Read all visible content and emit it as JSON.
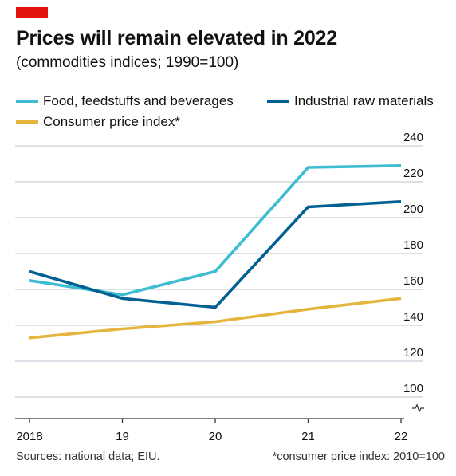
{
  "header": {
    "title": "Prices will remain elevated in 2022",
    "subtitle": "(commodities indices; 1990=100)"
  },
  "footer": {
    "source": "Sources: national data; EIU.",
    "note": "*consumer price index: 2010=100"
  },
  "colors": {
    "brand_tag": "#e3120b",
    "grid": "#b7c3cc",
    "axis": "#333333"
  },
  "chart_data": {
    "type": "line",
    "title": "Prices will remain elevated in 2022",
    "subtitle": "(commodities indices; 1990=100)",
    "x": [
      2018,
      2019,
      2020,
      2021,
      2022
    ],
    "x_tick_labels": [
      "2018",
      "19",
      "20",
      "21",
      "22"
    ],
    "ylim": [
      100,
      240
    ],
    "y_ticks": [
      100,
      120,
      140,
      160,
      180,
      200,
      220,
      240
    ],
    "y_axis_position": "right",
    "y_axis_break": true,
    "grid": "horizontal",
    "legend_position": "top-left",
    "series": [
      {
        "name": "Food, feedstuffs and beverages",
        "color": "#3ebcd2",
        "values": [
          165,
          157,
          170,
          228,
          229
        ]
      },
      {
        "name": "Industrial raw materials",
        "color": "#006092",
        "values": [
          170,
          155,
          150,
          206,
          209
        ]
      },
      {
        "name": "Consumer price index*",
        "color": "#e6b53d",
        "values": [
          133,
          138,
          142,
          149,
          155
        ]
      }
    ]
  }
}
